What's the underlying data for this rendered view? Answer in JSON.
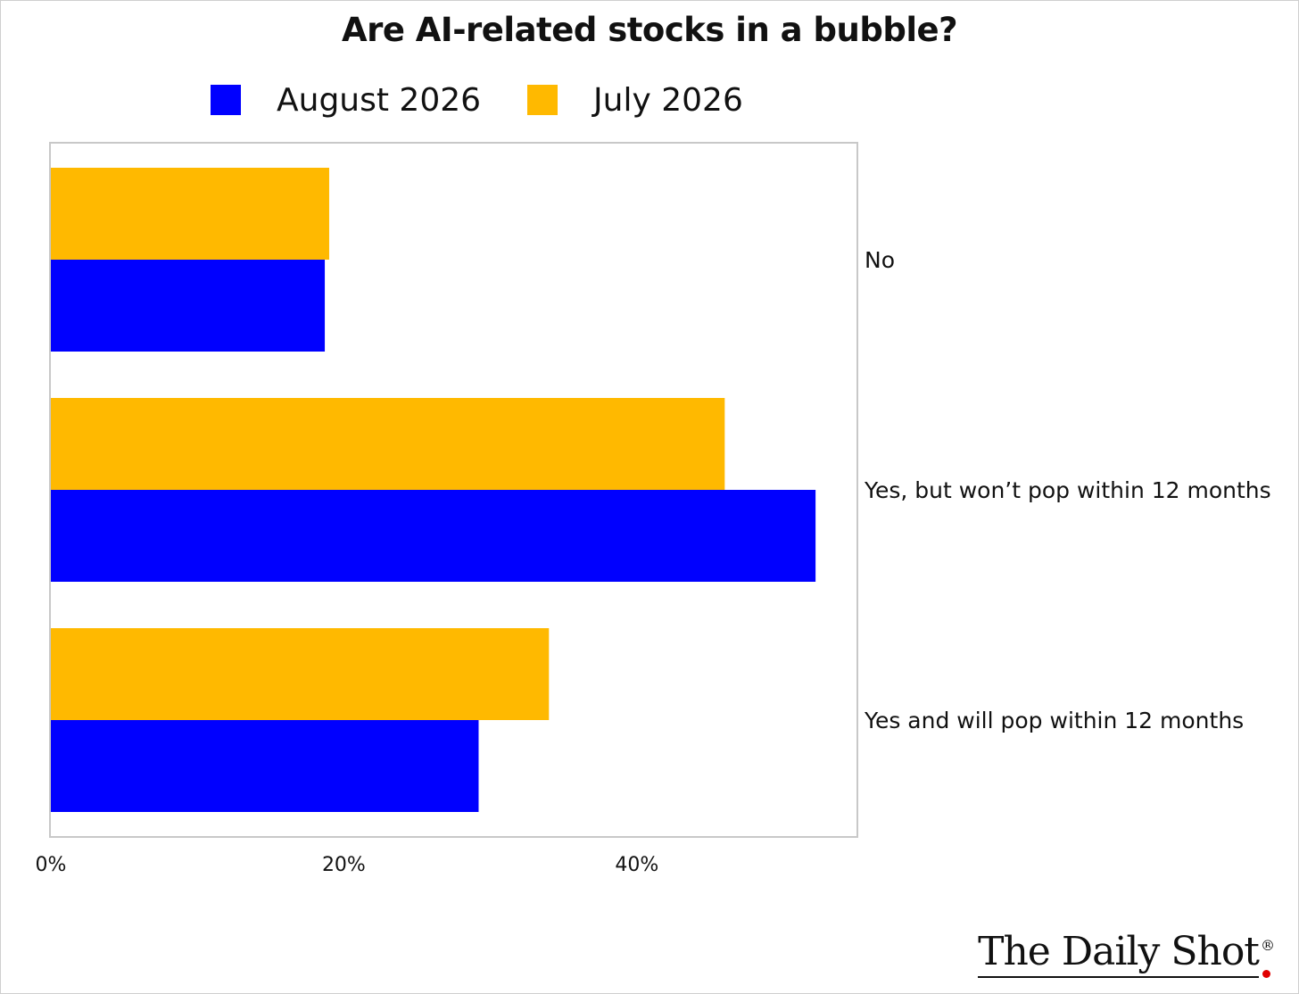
{
  "chart_data": {
    "type": "bar",
    "orientation": "horizontal",
    "title": "Are AI-related stocks in a bubble?",
    "categories": [
      "No",
      "Yes, but won’t pop within 12 months",
      "Yes and will pop within 12 months"
    ],
    "series": [
      {
        "name": "July 2026",
        "color": "#FFB900",
        "values": [
          19.0,
          46.0,
          34.0
        ]
      },
      {
        "name": "August 2026",
        "color": "#0000FF",
        "values": [
          18.7,
          52.2,
          29.2
        ]
      }
    ],
    "xlim": [
      0,
      55
    ],
    "x_ticks": [
      {
        "value": 0,
        "label": "0%"
      },
      {
        "value": 20,
        "label": "20%"
      },
      {
        "value": 40,
        "label": "40%"
      }
    ],
    "grid": false,
    "legend_position": "top",
    "legend_order": [
      "August 2026",
      "July 2026"
    ],
    "category_label_position": "right"
  },
  "brand": {
    "text": "The Daily Shot",
    "registered_mark": "®",
    "dot_color": "#E00000"
  },
  "colors": {
    "plot_border": "#C8C8C8"
  }
}
